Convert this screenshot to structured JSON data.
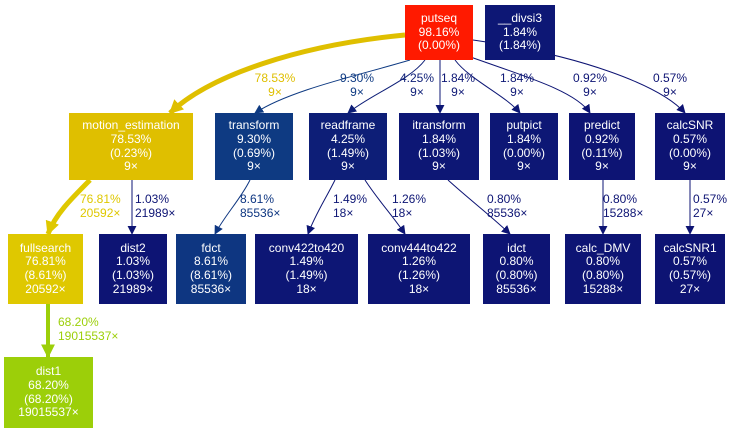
{
  "nodes": [
    {
      "id": "putseq",
      "name": "putseq",
      "total": "98.16%",
      "self": "(0.00%)",
      "calls": "",
      "color": "#ff1a00"
    },
    {
      "id": "divsi3",
      "name": "__divsi3",
      "total": "1.84%",
      "self": "(1.84%)",
      "calls": "",
      "color": "#0d1775"
    },
    {
      "id": "motion_estimation",
      "name": "motion_estimation",
      "total": "78.53%",
      "self": "(0.23%)",
      "calls": "9×",
      "color": "#dfbf00"
    },
    {
      "id": "transform",
      "name": "transform",
      "total": "9.30%",
      "self": "(0.69%)",
      "calls": "9×",
      "color": "#0e3a82"
    },
    {
      "id": "readframe",
      "name": "readframe",
      "total": "4.25%",
      "self": "(1.49%)",
      "calls": "9×",
      "color": "#0d1e77"
    },
    {
      "id": "itransform",
      "name": "itransform",
      "total": "1.84%",
      "self": "(1.03%)",
      "calls": "9×",
      "color": "#0d1775"
    },
    {
      "id": "putpict",
      "name": "putpict",
      "total": "1.84%",
      "self": "(0.00%)",
      "calls": "9×",
      "color": "#0d1775"
    },
    {
      "id": "predict",
      "name": "predict",
      "total": "0.92%",
      "self": "(0.11%)",
      "calls": "9×",
      "color": "#0d1474"
    },
    {
      "id": "calcSNR",
      "name": "calcSNR",
      "total": "0.57%",
      "self": "(0.00%)",
      "calls": "9×",
      "color": "#0d1373"
    },
    {
      "id": "fullsearch",
      "name": "fullsearch",
      "total": "76.81%",
      "self": "(8.61%)",
      "calls": "20592×",
      "color": "#dfc800"
    },
    {
      "id": "dist2",
      "name": "dist2",
      "total": "1.03%",
      "self": "(1.03%)",
      "calls": "21989×",
      "color": "#0d1474"
    },
    {
      "id": "fdct",
      "name": "fdct",
      "total": "8.61%",
      "self": "(8.61%)",
      "calls": "85536×",
      "color": "#0e3681"
    },
    {
      "id": "conv422to420",
      "name": "conv422to420",
      "total": "1.49%",
      "self": "(1.49%)",
      "calls": "18×",
      "color": "#0d1675"
    },
    {
      "id": "conv444to422",
      "name": "conv444to422",
      "total": "1.26%",
      "self": "(1.26%)",
      "calls": "18×",
      "color": "#0d1574"
    },
    {
      "id": "idct",
      "name": "idct",
      "total": "0.80%",
      "self": "(0.80%)",
      "calls": "85536×",
      "color": "#0d1474"
    },
    {
      "id": "calc_DMV",
      "name": "calc_DMV",
      "total": "0.80%",
      "self": "(0.80%)",
      "calls": "15288×",
      "color": "#0d1474"
    },
    {
      "id": "calcSNR1",
      "name": "calcSNR1",
      "total": "0.57%",
      "self": "(0.57%)",
      "calls": "27×",
      "color": "#0d1373"
    },
    {
      "id": "dist1",
      "name": "dist1",
      "total": "68.20%",
      "self": "(68.20%)",
      "calls": "19015537×",
      "color": "#9ccf09"
    }
  ],
  "edges": [
    {
      "from": "putseq",
      "to": "motion_estimation",
      "pct": "78.53%",
      "calls": "9×",
      "color": "#dfbf00"
    },
    {
      "from": "putseq",
      "to": "transform",
      "pct": "9.30%",
      "calls": "9×",
      "color": "#0e3a82"
    },
    {
      "from": "putseq",
      "to": "readframe",
      "pct": "4.25%",
      "calls": "9×",
      "color": "#0d1e77"
    },
    {
      "from": "putseq",
      "to": "itransform",
      "pct": "1.84%",
      "calls": "9×",
      "color": "#0d1775"
    },
    {
      "from": "putseq",
      "to": "putpict",
      "pct": "1.84%",
      "calls": "9×",
      "color": "#0d1775"
    },
    {
      "from": "putseq",
      "to": "predict",
      "pct": "0.92%",
      "calls": "9×",
      "color": "#0d1474"
    },
    {
      "from": "putseq",
      "to": "calcSNR",
      "pct": "0.57%",
      "calls": "9×",
      "color": "#0d1373"
    },
    {
      "from": "motion_estimation",
      "to": "fullsearch",
      "pct": "76.81%",
      "calls": "20592×",
      "color": "#dfc800"
    },
    {
      "from": "motion_estimation",
      "to": "dist2",
      "pct": "1.03%",
      "calls": "21989×",
      "color": "#0d1474"
    },
    {
      "from": "transform",
      "to": "fdct",
      "pct": "8.61%",
      "calls": "85536×",
      "color": "#0e3681"
    },
    {
      "from": "readframe",
      "to": "conv422to420",
      "pct": "1.49%",
      "calls": "18×",
      "color": "#0d1675"
    },
    {
      "from": "readframe",
      "to": "conv444to422",
      "pct": "1.26%",
      "calls": "18×",
      "color": "#0d1574"
    },
    {
      "from": "itransform",
      "to": "idct",
      "pct": "0.80%",
      "calls": "85536×",
      "color": "#0d1474"
    },
    {
      "from": "predict",
      "to": "calc_DMV",
      "pct": "0.80%",
      "calls": "15288×",
      "color": "#0d1474"
    },
    {
      "from": "calcSNR",
      "to": "calcSNR1",
      "pct": "0.57%",
      "calls": "27×",
      "color": "#0d1373"
    },
    {
      "from": "fullsearch",
      "to": "dist1",
      "pct": "68.20%",
      "calls": "19015537×",
      "color": "#9ccf09"
    }
  ]
}
